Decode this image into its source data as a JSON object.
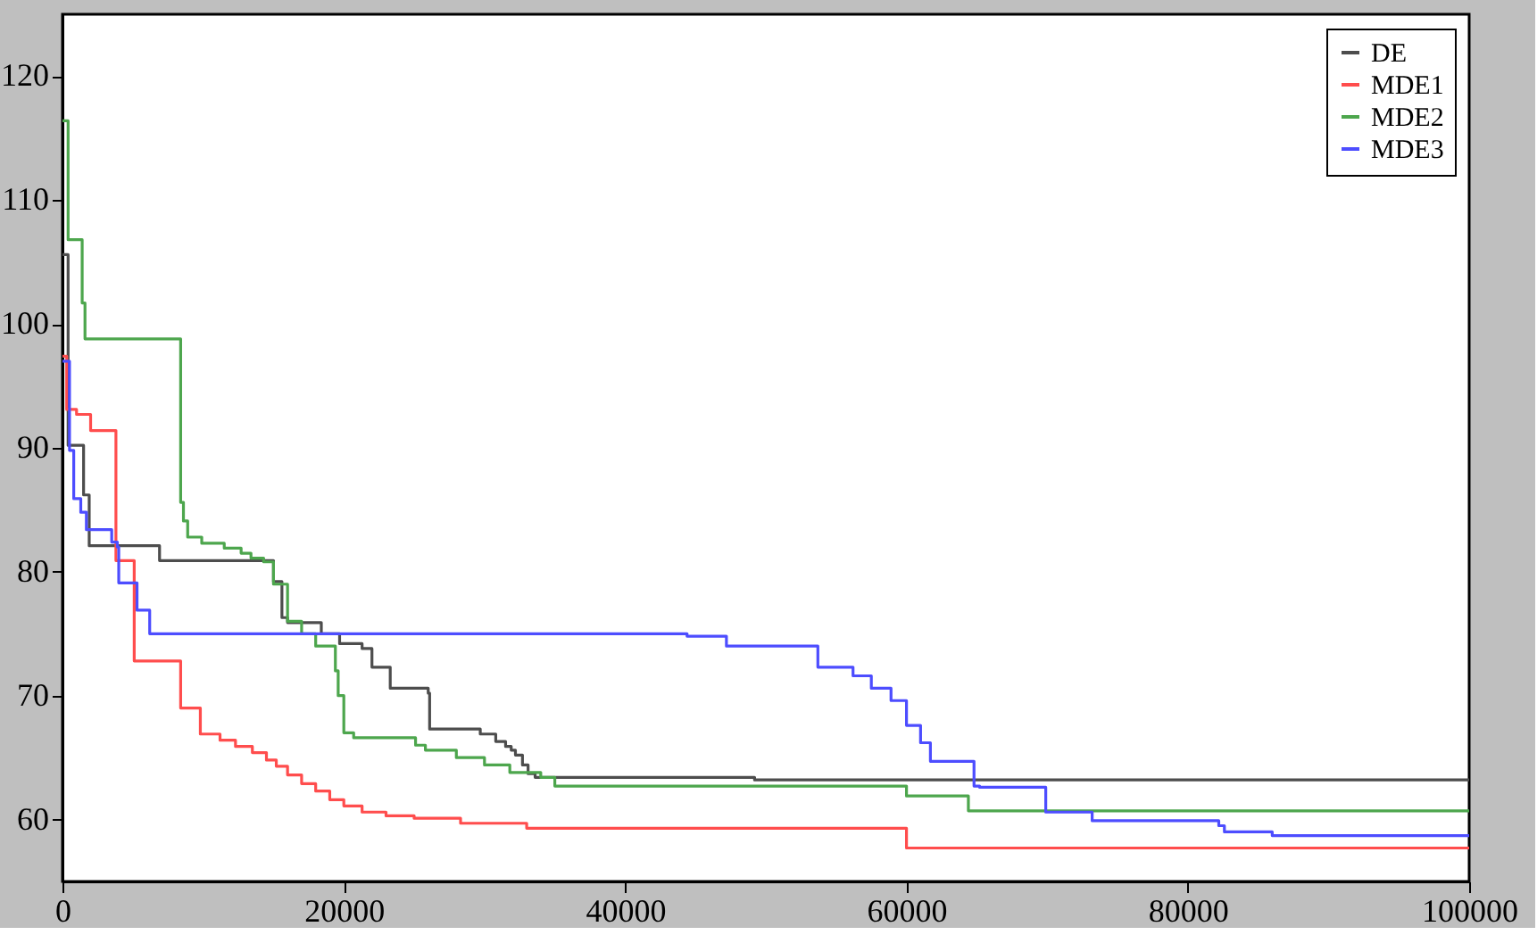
{
  "chart_data": {
    "type": "step",
    "xlim": [
      0,
      100000
    ],
    "ylim": [
      55,
      125
    ],
    "xticks": [
      0,
      20000,
      40000,
      60000,
      80000,
      100000
    ],
    "yticks": [
      60,
      70,
      80,
      90,
      100,
      110,
      120
    ],
    "grid": false,
    "legend": "top right",
    "marker": "none",
    "line_style": "solid",
    "series": [
      {
        "name": "DE",
        "color": "#4d4d4d",
        "x": [
          0,
          400,
          1500,
          1900,
          6900,
          15000,
          15600,
          16000,
          18400,
          19700,
          21300,
          22000,
          23300,
          26000,
          26100,
          29700,
          30800,
          31500,
          31900,
          32200,
          32700,
          33100,
          33600,
          49200,
          100000
        ],
        "values": [
          105.6,
          90.2,
          86.2,
          82.1,
          80.9,
          79.2,
          76.3,
          75.9,
          75.0,
          74.2,
          73.8,
          72.3,
          70.6,
          70.2,
          67.3,
          66.9,
          66.3,
          65.9,
          65.6,
          65.2,
          64.4,
          63.7,
          63.4,
          63.2,
          63.2
        ]
      },
      {
        "name": "MDE1",
        "color": "#ff4d4d",
        "x": [
          0,
          300,
          1000,
          2000,
          3800,
          5100,
          8400,
          9800,
          11200,
          12300,
          13500,
          14500,
          15200,
          16000,
          17000,
          18000,
          19000,
          20000,
          21300,
          23000,
          25000,
          28300,
          33000,
          60000,
          100000
        ],
        "values": [
          97.4,
          93.1,
          92.7,
          91.4,
          80.9,
          72.8,
          69.0,
          66.9,
          66.4,
          65.9,
          65.4,
          64.8,
          64.3,
          63.6,
          62.9,
          62.3,
          61.6,
          61.1,
          60.6,
          60.3,
          60.1,
          59.7,
          59.3,
          57.7,
          57.7
        ]
      },
      {
        "name": "MDE2",
        "color": "#4da64d",
        "x": [
          0,
          400,
          1400,
          1600,
          8400,
          8600,
          8900,
          9900,
          11500,
          12700,
          13400,
          14300,
          15000,
          16000,
          17000,
          18000,
          19400,
          19600,
          20000,
          20700,
          25100,
          25800,
          28000,
          30000,
          31800,
          34000,
          35000,
          60000,
          64400,
          100000
        ],
        "values": [
          116.4,
          106.8,
          101.7,
          98.8,
          85.6,
          84.1,
          82.8,
          82.3,
          81.9,
          81.5,
          81.1,
          80.8,
          79.0,
          76.0,
          75.0,
          74.0,
          72.0,
          70.0,
          67.0,
          66.6,
          66.0,
          65.6,
          65.0,
          64.4,
          63.8,
          63.4,
          62.7,
          61.9,
          60.7,
          60.7
        ]
      },
      {
        "name": "MDE3",
        "color": "#4d4dff",
        "x": [
          0,
          500,
          800,
          1300,
          1700,
          3500,
          3900,
          4000,
          5300,
          6200,
          44400,
          47200,
          53700,
          56200,
          57500,
          58900,
          60000,
          61000,
          61700,
          64800,
          65200,
          69900,
          73200,
          82200,
          82600,
          86000,
          100000
        ],
        "values": [
          97.0,
          89.8,
          85.9,
          84.8,
          83.4,
          82.4,
          82.0,
          79.1,
          76.9,
          75.0,
          74.8,
          74.0,
          72.3,
          71.6,
          70.6,
          69.6,
          67.6,
          66.2,
          64.7,
          62.7,
          62.6,
          60.6,
          59.9,
          59.5,
          59.0,
          58.7,
          58.7
        ]
      }
    ]
  }
}
